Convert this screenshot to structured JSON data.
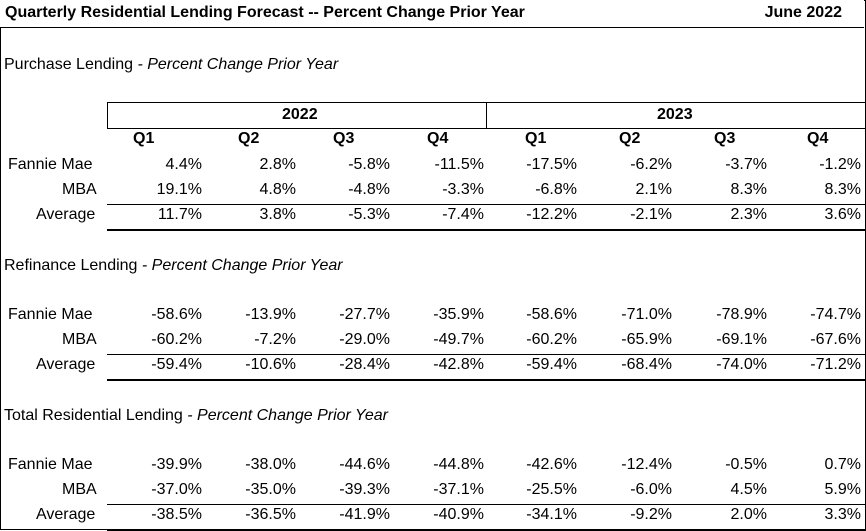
{
  "header": {
    "title": "Quarterly Residential Lending Forecast -- Percent Change Prior Year",
    "date": "June 2022"
  },
  "years": [
    "2022",
    "2023"
  ],
  "quarters": [
    "Q1",
    "Q2",
    "Q3",
    "Q4",
    "Q1",
    "Q2",
    "Q3",
    "Q4"
  ],
  "sections": [
    {
      "title": "Purchase Lending",
      "subtitle": "- Percent Change Prior Year",
      "rows": [
        {
          "label": "Fannie Mae",
          "values": [
            "4.4%",
            "2.8%",
            "-5.8%",
            "-11.5%",
            "-17.5%",
            "-6.2%",
            "-3.7%",
            "-1.2%"
          ]
        },
        {
          "label": "MBA",
          "values": [
            "19.1%",
            "4.8%",
            "-4.8%",
            "-3.3%",
            "-6.8%",
            "2.1%",
            "8.3%",
            "8.3%"
          ]
        },
        {
          "label": "Average",
          "values": [
            "11.7%",
            "3.8%",
            "-5.3%",
            "-7.4%",
            "-12.2%",
            "-2.1%",
            "2.3%",
            "3.6%"
          ]
        }
      ]
    },
    {
      "title": "Refinance Lending",
      "subtitle": "- Percent Change Prior Year",
      "rows": [
        {
          "label": "Fannie Mae",
          "values": [
            "-58.6%",
            "-13.9%",
            "-27.7%",
            "-35.9%",
            "-58.6%",
            "-71.0%",
            "-78.9%",
            "-74.7%"
          ]
        },
        {
          "label": "MBA",
          "values": [
            "-60.2%",
            "-7.2%",
            "-29.0%",
            "-49.7%",
            "-60.2%",
            "-65.9%",
            "-69.1%",
            "-67.6%"
          ]
        },
        {
          "label": "Average",
          "values": [
            "-59.4%",
            "-10.6%",
            "-28.4%",
            "-42.8%",
            "-59.4%",
            "-68.4%",
            "-74.0%",
            "-71.2%"
          ]
        }
      ]
    },
    {
      "title": "Total Residential Lending",
      "subtitle": "- Percent Change Prior Year",
      "rows": [
        {
          "label": "Fannie Mae",
          "values": [
            "-39.9%",
            "-38.0%",
            "-44.6%",
            "-44.8%",
            "-42.6%",
            "-12.4%",
            "-0.5%",
            "0.7%"
          ]
        },
        {
          "label": "MBA",
          "values": [
            "-37.0%",
            "-35.0%",
            "-39.3%",
            "-37.1%",
            "-25.5%",
            "-6.0%",
            "4.5%",
            "5.9%"
          ]
        },
        {
          "label": "Average",
          "values": [
            "-38.5%",
            "-36.5%",
            "-41.9%",
            "-40.9%",
            "-34.1%",
            "-9.2%",
            "2.0%",
            "3.3%"
          ]
        }
      ]
    }
  ]
}
